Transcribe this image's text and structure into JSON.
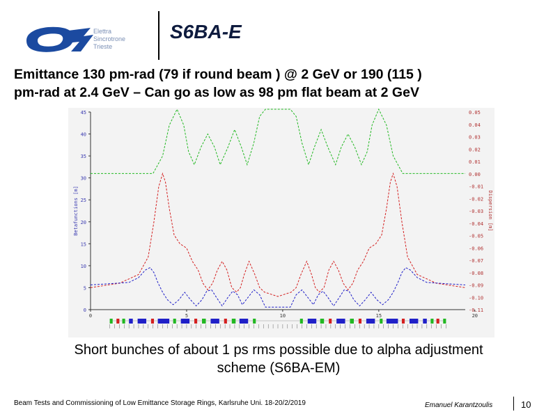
{
  "header": {
    "logo_text": [
      "Elettra",
      "Sincrotrone",
      "Trieste"
    ],
    "title": "S6BA-E"
  },
  "headline": {
    "line1": "Emittance 130 pm-rad (79 if round beam ) @ 2 GeV or 190 (115 )",
    "line2": "pm-rad at 2.4 GeV – Can go as low as 98 pm flat beam at 2 GeV"
  },
  "caption": {
    "line1": "Short bunches of about 1 ps rms possible due to alpha adjustment",
    "line2": "scheme (S6BA-EM)"
  },
  "footer": {
    "conference": "Beam Tests and Commissioning of Low Emittance Storage Rings, Karlsruhe Uni. 18-20/2/2019",
    "author": "Emanuel Karantzoulis",
    "page": "10"
  },
  "colors": {
    "betax": "#d42020",
    "betay": "#22b822",
    "dispersion": "#2020c8",
    "axis_left": "#3a3ab0",
    "axis_right": "#b03030"
  },
  "chart_data": {
    "type": "line",
    "ylabel": "Betafunctions [m]",
    "ylabel_right": "Dispersion [m]",
    "ylim": [
      0,
      45
    ],
    "y_ticks": [
      "0",
      "5",
      "10",
      "15",
      "20",
      "25",
      "30",
      "35",
      "40",
      "45"
    ],
    "y2lim": [
      -0.11,
      0.05
    ],
    "y2_ticks": [
      "0.05",
      "0.04",
      "0.03",
      "0.02",
      "0.01",
      "0.00",
      "-0.01",
      "-0.02",
      "-0.03",
      "-0.04",
      "-0.05",
      "-0.06",
      "-0.07",
      "-0.08",
      "-0.09",
      "-0.10",
      "-0.11"
    ],
    "xlim": [
      0,
      39
    ],
    "x_ticks": [
      "0",
      "5",
      "10",
      "15",
      "20"
    ],
    "grid": false,
    "series": [
      {
        "key": "betay",
        "axis": "left",
        "points": [
          [
            0,
            31
          ],
          [
            6.5,
            31
          ],
          [
            7.5,
            35
          ],
          [
            8.2,
            42
          ],
          [
            9,
            46
          ],
          [
            9.7,
            42
          ],
          [
            10.2,
            36
          ],
          [
            10.8,
            33
          ],
          [
            11.5,
            37
          ],
          [
            12.2,
            40
          ],
          [
            12.9,
            37
          ],
          [
            13.5,
            33
          ],
          [
            14.3,
            37
          ],
          [
            15,
            41
          ],
          [
            15.7,
            37
          ],
          [
            16.3,
            33
          ],
          [
            17,
            38
          ],
          [
            17.6,
            44
          ],
          [
            18.2,
            46
          ],
          [
            20.8,
            46
          ],
          [
            21.4,
            44
          ],
          [
            22,
            38
          ],
          [
            22.7,
            33
          ],
          [
            23.3,
            37
          ],
          [
            24,
            41
          ],
          [
            24.7,
            37
          ],
          [
            25.5,
            33
          ],
          [
            26.1,
            37
          ],
          [
            26.8,
            40
          ],
          [
            27.5,
            37
          ],
          [
            28.2,
            33
          ],
          [
            28.8,
            36
          ],
          [
            29.3,
            42
          ],
          [
            30,
            46
          ],
          [
            30.8,
            42
          ],
          [
            31.5,
            35
          ],
          [
            32.5,
            31
          ],
          [
            39,
            31
          ]
        ]
      },
      {
        "key": "betax",
        "axis": "left",
        "points": [
          [
            0,
            5
          ],
          [
            3,
            6
          ],
          [
            5,
            8
          ],
          [
            6,
            12
          ],
          [
            6.6,
            20
          ],
          [
            7.1,
            28
          ],
          [
            7.5,
            31
          ],
          [
            7.8,
            29
          ],
          [
            8.2,
            23
          ],
          [
            8.7,
            17
          ],
          [
            9.3,
            15
          ],
          [
            10,
            14
          ],
          [
            10.6,
            11
          ],
          [
            11.2,
            9
          ],
          [
            11.7,
            6
          ],
          [
            12.2,
            4.5
          ],
          [
            12.7,
            6
          ],
          [
            13.2,
            9
          ],
          [
            13.7,
            11
          ],
          [
            14.2,
            9
          ],
          [
            14.7,
            5
          ],
          [
            15.2,
            4
          ],
          [
            15.6,
            5
          ],
          [
            16,
            8
          ],
          [
            16.5,
            11
          ],
          [
            17.1,
            8
          ],
          [
            17.6,
            5
          ],
          [
            18.1,
            4
          ],
          [
            19.5,
            3
          ],
          [
            20.9,
            4
          ],
          [
            21.4,
            5
          ],
          [
            21.9,
            8
          ],
          [
            22.5,
            11
          ],
          [
            23,
            8
          ],
          [
            23.4,
            5
          ],
          [
            23.8,
            4
          ],
          [
            24.3,
            5
          ],
          [
            24.8,
            9
          ],
          [
            25.3,
            11
          ],
          [
            25.8,
            9
          ],
          [
            26.3,
            6
          ],
          [
            26.8,
            4.5
          ],
          [
            27.3,
            6
          ],
          [
            27.8,
            9
          ],
          [
            28.4,
            11
          ],
          [
            29,
            14
          ],
          [
            29.7,
            15
          ],
          [
            30.3,
            17
          ],
          [
            30.8,
            23
          ],
          [
            31.2,
            29
          ],
          [
            31.5,
            31
          ],
          [
            31.9,
            28
          ],
          [
            32.4,
            20
          ],
          [
            33,
            12
          ],
          [
            34,
            8
          ],
          [
            36,
            6
          ],
          [
            39,
            5
          ]
        ]
      },
      {
        "key": "dispersion",
        "axis": "right",
        "points": [
          [
            0,
            -0.09
          ],
          [
            4,
            -0.088
          ],
          [
            5,
            -0.084
          ],
          [
            5.7,
            -0.078
          ],
          [
            6.2,
            -0.076
          ],
          [
            6.6,
            -0.08
          ],
          [
            7,
            -0.088
          ],
          [
            7.5,
            -0.096
          ],
          [
            8,
            -0.102
          ],
          [
            8.6,
            -0.106
          ],
          [
            9.2,
            -0.102
          ],
          [
            9.8,
            -0.096
          ],
          [
            10.4,
            -0.102
          ],
          [
            11,
            -0.107
          ],
          [
            11.6,
            -0.102
          ],
          [
            12.1,
            -0.095
          ],
          [
            12.6,
            -0.094
          ],
          [
            13.1,
            -0.1
          ],
          [
            13.7,
            -0.107
          ],
          [
            14.3,
            -0.1
          ],
          [
            14.8,
            -0.095
          ],
          [
            15.3,
            -0.098
          ],
          [
            15.8,
            -0.106
          ],
          [
            16.4,
            -0.1
          ],
          [
            17,
            -0.094
          ],
          [
            17.6,
            -0.098
          ],
          [
            18.2,
            -0.108
          ],
          [
            19.5,
            -0.108
          ],
          [
            20.8,
            -0.108
          ],
          [
            21.4,
            -0.098
          ],
          [
            22,
            -0.094
          ],
          [
            22.6,
            -0.1
          ],
          [
            23.2,
            -0.106
          ],
          [
            23.7,
            -0.098
          ],
          [
            24.2,
            -0.095
          ],
          [
            24.7,
            -0.1
          ],
          [
            25.3,
            -0.107
          ],
          [
            25.9,
            -0.1
          ],
          [
            26.4,
            -0.094
          ],
          [
            26.9,
            -0.095
          ],
          [
            27.4,
            -0.102
          ],
          [
            28,
            -0.107
          ],
          [
            28.6,
            -0.102
          ],
          [
            29.2,
            -0.096
          ],
          [
            29.8,
            -0.102
          ],
          [
            30.4,
            -0.106
          ],
          [
            31,
            -0.102
          ],
          [
            31.5,
            -0.096
          ],
          [
            32,
            -0.088
          ],
          [
            32.4,
            -0.08
          ],
          [
            32.8,
            -0.076
          ],
          [
            33.3,
            -0.078
          ],
          [
            34,
            -0.084
          ],
          [
            35,
            -0.088
          ],
          [
            39,
            -0.09
          ]
        ]
      }
    ],
    "lattice": [
      {
        "x": [
          2.0,
          2.3
        ],
        "c": "#22b822"
      },
      {
        "x": [
          2.7,
          3.0
        ],
        "c": "#d42020"
      },
      {
        "x": [
          3.3,
          3.6
        ],
        "c": "#22b822"
      },
      {
        "x": [
          4.0,
          4.4
        ],
        "c": "#2020c8"
      },
      {
        "x": [
          4.9,
          5.8
        ],
        "c": "#2020c8"
      },
      {
        "x": [
          6.3,
          6.6
        ],
        "c": "#d42020"
      },
      {
        "x": [
          7.0,
          8.2
        ],
        "c": "#2020c8"
      },
      {
        "x": [
          8.6,
          8.9
        ],
        "c": "#22b822"
      },
      {
        "x": [
          9.4,
          10.3
        ],
        "c": "#2020c8"
      },
      {
        "x": [
          10.8,
          11.1
        ],
        "c": "#d42020"
      },
      {
        "x": [
          11.6,
          12.0
        ],
        "c": "#22b822"
      },
      {
        "x": [
          12.5,
          13.4
        ],
        "c": "#2020c8"
      },
      {
        "x": [
          13.9,
          14.2
        ],
        "c": "#d42020"
      },
      {
        "x": [
          14.7,
          15.1
        ],
        "c": "#22b822"
      },
      {
        "x": [
          15.5,
          16.4
        ],
        "c": "#2020c8"
      },
      {
        "x": [
          16.9,
          17.2
        ],
        "c": "#22b822"
      },
      {
        "x": [
          21.8,
          22.1
        ],
        "c": "#22b822"
      },
      {
        "x": [
          22.6,
          23.5
        ],
        "c": "#2020c8"
      },
      {
        "x": [
          23.9,
          24.3
        ],
        "c": "#22b822"
      },
      {
        "x": [
          24.8,
          25.1
        ],
        "c": "#d42020"
      },
      {
        "x": [
          25.6,
          26.5
        ],
        "c": "#2020c8"
      },
      {
        "x": [
          27.0,
          27.4
        ],
        "c": "#22b822"
      },
      {
        "x": [
          27.9,
          28.2
        ],
        "c": "#d42020"
      },
      {
        "x": [
          28.7,
          29.6
        ],
        "c": "#2020c8"
      },
      {
        "x": [
          30.1,
          30.4
        ],
        "c": "#22b822"
      },
      {
        "x": [
          30.8,
          32.0
        ],
        "c": "#2020c8"
      },
      {
        "x": [
          32.4,
          32.7
        ],
        "c": "#d42020"
      },
      {
        "x": [
          33.2,
          34.1
        ],
        "c": "#2020c8"
      },
      {
        "x": [
          34.6,
          35.0
        ],
        "c": "#2020c8"
      },
      {
        "x": [
          35.4,
          35.7
        ],
        "c": "#22b822"
      },
      {
        "x": [
          36.0,
          36.3
        ],
        "c": "#d42020"
      },
      {
        "x": [
          36.7,
          37.0
        ],
        "c": "#22b822"
      }
    ]
  }
}
